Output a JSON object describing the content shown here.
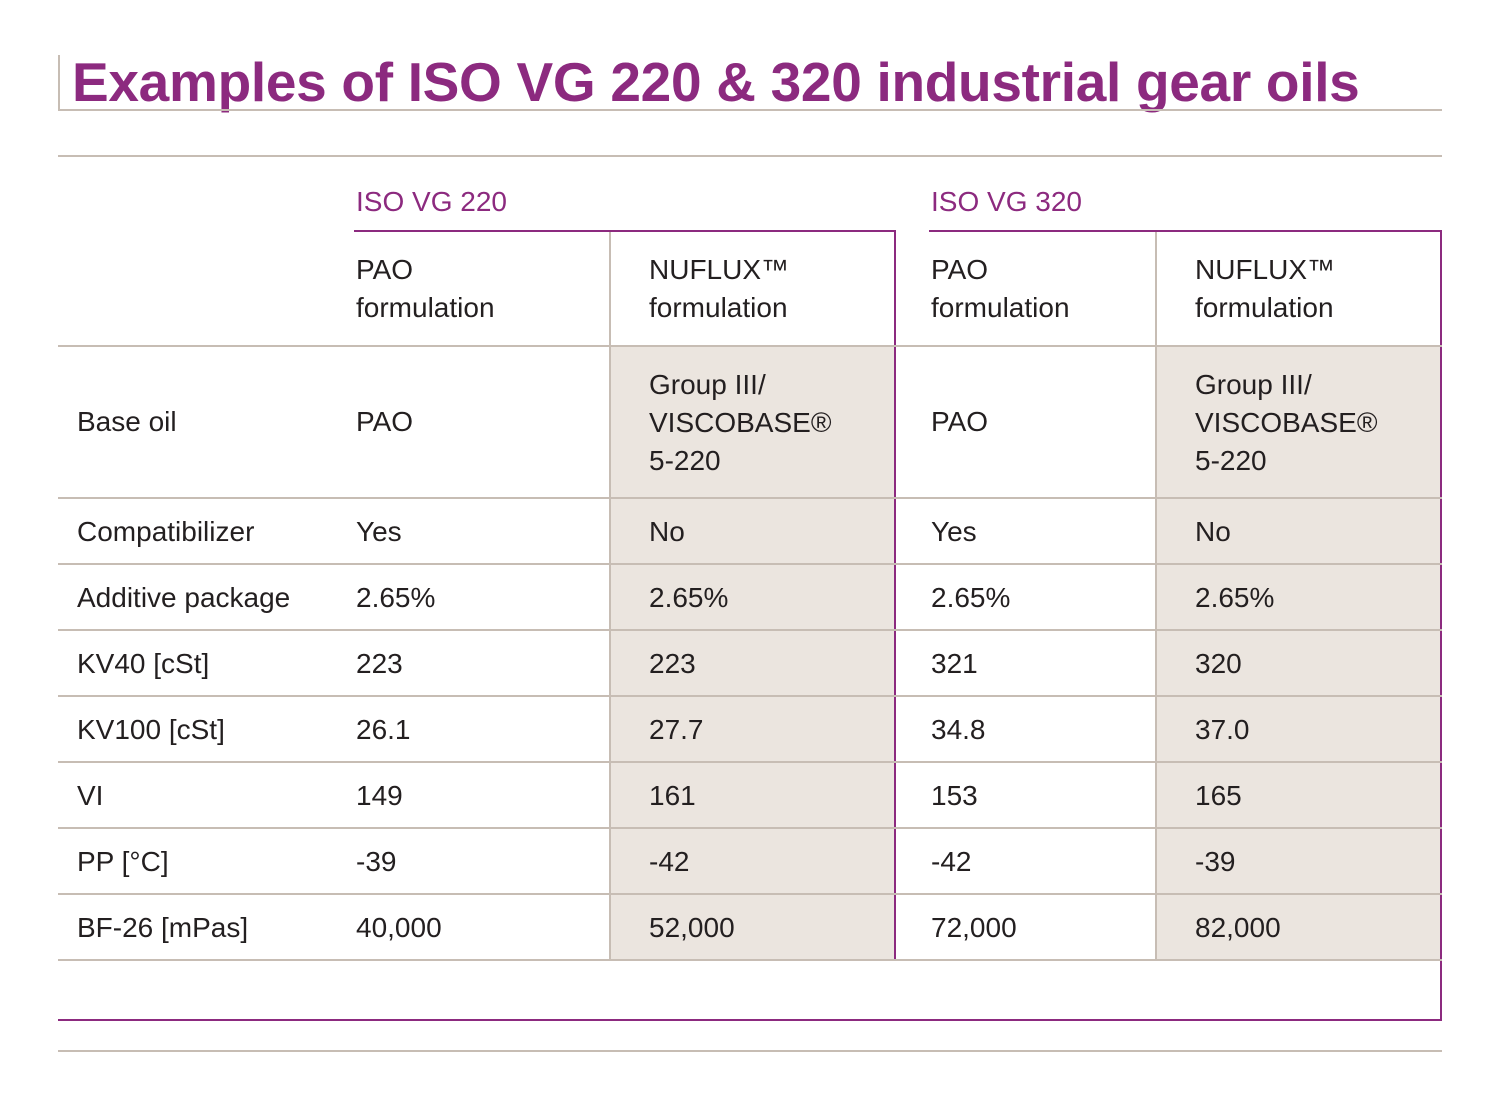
{
  "title": "Examples of ISO VG 220 & 320 industrial gear oils",
  "colors": {
    "accent": "#8c2a7f",
    "rule": "#c7bdb4",
    "shade": "#ebe5df",
    "text": "#231f20"
  },
  "table": {
    "groups": [
      {
        "label": "ISO VG 220"
      },
      {
        "label": "ISO VG 320"
      }
    ],
    "columns": [
      {
        "line1": "PAO",
        "line2": "formulation"
      },
      {
        "line1": "NUFLUX™",
        "line2": "formulation"
      },
      {
        "line1": "PAO",
        "line2": "formulation"
      },
      {
        "line1": "NUFLUX™",
        "line2": "formulation"
      }
    ],
    "rows": [
      {
        "label": "Base oil",
        "values": [
          "PAO",
          "Group III/\nVISCOBASE®\n5-220",
          "PAO",
          "Group III/\nVISCOBASE®\n5-220"
        ]
      },
      {
        "label": "Compatibilizer",
        "values": [
          "Yes",
          "No",
          "Yes",
          "No"
        ]
      },
      {
        "label": "Additive package",
        "values": [
          "2.65%",
          "2.65%",
          "2.65%",
          "2.65%"
        ]
      },
      {
        "label": "KV40 [cSt]",
        "values": [
          "223",
          "223",
          "321",
          "320"
        ]
      },
      {
        "label": "KV100 [cSt]",
        "values": [
          "26.1",
          "27.7",
          "34.8",
          "37.0"
        ]
      },
      {
        "label": "VI",
        "values": [
          "149",
          "161",
          "153",
          "165"
        ]
      },
      {
        "label": "PP [°C]",
        "values": [
          "-39",
          "-42",
          "-42",
          "-39"
        ]
      },
      {
        "label": "BF-26 [mPas]",
        "values": [
          "40,000",
          "52,000",
          "72,000",
          "82,000"
        ]
      }
    ]
  }
}
